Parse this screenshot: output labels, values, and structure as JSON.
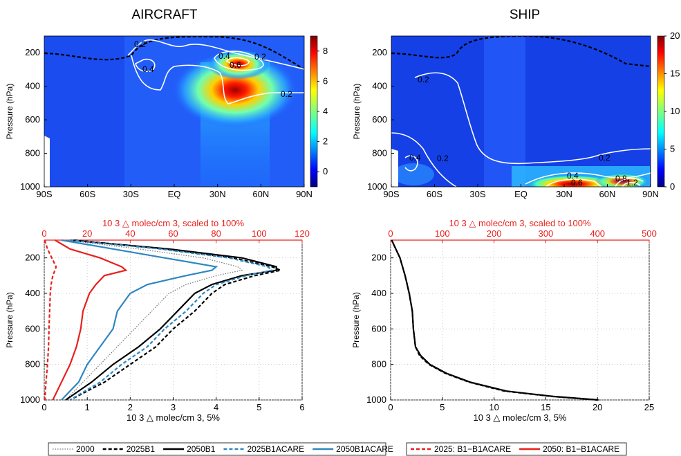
{
  "colors": {
    "red": "#e8201c",
    "blue": "#2f87c0",
    "black": "#000000",
    "grey": "#7a7a7a"
  },
  "titles": {
    "aircraft": "AIRCRAFT",
    "ship": "SHIP"
  },
  "chart_data": [
    {
      "type": "heatmap",
      "title": "AIRCRAFT",
      "ylabel": "Pressure (hPa)",
      "ylim": [
        1000,
        100
      ],
      "x_ticks": [
        "90S",
        "60S",
        "30S",
        "EQ",
        "30N",
        "60N",
        "90N"
      ],
      "y_ticks": [
        "200",
        "400",
        "600",
        "800",
        "1000"
      ],
      "colorbar": {
        "ticks": [
          "0",
          "2",
          "4",
          "6",
          "8"
        ],
        "range": [
          -1,
          9
        ]
      },
      "contour_labels": [
        "0.2",
        "0.4",
        "0.4",
        "0.6",
        "0.2",
        "0.2"
      ]
    },
    {
      "type": "heatmap",
      "title": "SHIP",
      "ylabel": "Pressure (hPa)",
      "ylim": [
        1000,
        100
      ],
      "x_ticks": [
        "90S",
        "60S",
        "30S",
        "EQ",
        "30N",
        "60N",
        "90N"
      ],
      "y_ticks": [
        "200",
        "400",
        "600",
        "800",
        "1000"
      ],
      "colorbar": {
        "ticks": [
          "0",
          "5",
          "10",
          "15",
          "20"
        ],
        "range": [
          0,
          20
        ]
      },
      "contour_labels": [
        "0.2",
        "0.2",
        "0.2",
        "0.4",
        "0.4",
        "0.6",
        "0.8",
        "1.2"
      ]
    },
    {
      "type": "line",
      "ylabel": "Pressure (hPa)",
      "xlabel": "10 3 △ molec/cm 3, 5%",
      "x2label": "10 3 △ molec/cm 3, scaled to 100%",
      "xlim": [
        0,
        6
      ],
      "x2lim": [
        0,
        120
      ],
      "ylim": [
        1000,
        100
      ],
      "x_ticks": [
        "0",
        "1",
        "2",
        "3",
        "4",
        "5",
        "6"
      ],
      "x2_ticks": [
        "0",
        "20",
        "40",
        "60",
        "80",
        "100",
        "120"
      ],
      "y_ticks": [
        "200",
        "400",
        "600",
        "800",
        "1000"
      ],
      "y": [
        100,
        150,
        200,
        250,
        270,
        300,
        350,
        400,
        500,
        600,
        700,
        800,
        900,
        1000
      ],
      "series": [
        {
          "name": "2000",
          "axis": "bottom",
          "style": "dotted",
          "color": "#7a7a7a",
          "values": [
            0.5,
            2.2,
            3.7,
            4.5,
            4.6,
            4.0,
            3.3,
            2.9,
            2.5,
            2.1,
            1.7,
            1.3,
            0.9,
            0.5
          ]
        },
        {
          "name": "2025B1",
          "axis": "bottom",
          "style": "dashed",
          "color": "#000000",
          "values": [
            0.7,
            2.8,
            4.4,
            5.3,
            5.5,
            4.9,
            4.2,
            3.9,
            3.5,
            3.0,
            2.6,
            2.0,
            1.4,
            0.6
          ]
        },
        {
          "name": "2050B1",
          "axis": "bottom",
          "style": "solid",
          "color": "#000000",
          "values": [
            0.6,
            2.9,
            4.6,
            5.4,
            5.4,
            4.6,
            3.9,
            3.5,
            3.1,
            2.7,
            2.2,
            1.6,
            1.1,
            0.5
          ]
        },
        {
          "name": "2025B1ACARE",
          "axis": "bottom",
          "style": "dashed",
          "color": "#2f87c0",
          "values": [
            0.6,
            2.7,
            4.3,
            5.2,
            5.3,
            4.7,
            4.0,
            3.7,
            3.3,
            2.8,
            2.4,
            1.8,
            1.3,
            0.6
          ]
        },
        {
          "name": "2050B1ACARE",
          "axis": "bottom",
          "style": "solid",
          "color": "#2f87c0",
          "values": [
            0.4,
            1.6,
            2.8,
            4.0,
            3.9,
            3.3,
            2.4,
            2.0,
            1.7,
            1.6,
            1.3,
            1.0,
            0.8,
            0.4
          ]
        },
        {
          "name": "2025: B1−B1ACARE",
          "axis": "top",
          "style": "dashed",
          "color": "#e8201c",
          "values": [
            0.2,
            1.5,
            3.5,
            5.5,
            5.0,
            4.0,
            3.2,
            2.8,
            2.5,
            2.2,
            2.0,
            1.5,
            0.8,
            0.3
          ]
        },
        {
          "name": "2050: B1−B1ACARE",
          "axis": "top",
          "style": "solid",
          "color": "#e8201c",
          "values": [
            5,
            12,
            26,
            36,
            38,
            28,
            24,
            21,
            18,
            17,
            15,
            12,
            8,
            4
          ]
        }
      ]
    },
    {
      "type": "line",
      "ylabel": "Pressure (hPa)",
      "xlabel": "10 3 △ molec/cm 3, 5%",
      "x2label": "10 3 △ molec/cm 3, scaled to 100%",
      "xlim": [
        0,
        25
      ],
      "x2lim": [
        0,
        500
      ],
      "ylim": [
        1000,
        100
      ],
      "x_ticks": [
        "0",
        "5",
        "10",
        "15",
        "20",
        "25"
      ],
      "x2_ticks": [
        "0",
        "100",
        "200",
        "300",
        "400",
        "500"
      ],
      "y_ticks": [
        "200",
        "400",
        "600",
        "800",
        "1000"
      ],
      "y": [
        100,
        200,
        300,
        400,
        500,
        600,
        700,
        750,
        800,
        850,
        900,
        950,
        980,
        1000
      ],
      "series": [
        {
          "name": "2000",
          "axis": "bottom",
          "style": "dotted",
          "color": "#7a7a7a",
          "values": [
            0.1,
            0.9,
            1.4,
            1.8,
            2.1,
            2.2,
            2.4,
            2.8,
            3.7,
            5.2,
            7.5,
            11.0,
            15.5,
            19.8
          ]
        },
        {
          "name": "2025B1",
          "axis": "bottom",
          "style": "dashed",
          "color": "#000000",
          "values": [
            0.1,
            0.9,
            1.4,
            1.8,
            2.1,
            2.2,
            2.4,
            2.8,
            3.7,
            5.3,
            7.6,
            11.0,
            15.6,
            20.0
          ]
        },
        {
          "name": "2050B1",
          "axis": "bottom",
          "style": "solid",
          "color": "#000000",
          "values": [
            0.1,
            0.9,
            1.4,
            1.8,
            2.1,
            2.2,
            2.4,
            2.9,
            3.8,
            5.4,
            7.7,
            11.2,
            15.7,
            20.1
          ]
        }
      ]
    }
  ],
  "legend_left": [
    "2000",
    "2025B1",
    "2050B1",
    "2025B1ACARE",
    "2050B1ACARE"
  ],
  "legend_right": [
    "2025: B1−B1ACARE",
    "2050: B1−B1ACARE"
  ]
}
